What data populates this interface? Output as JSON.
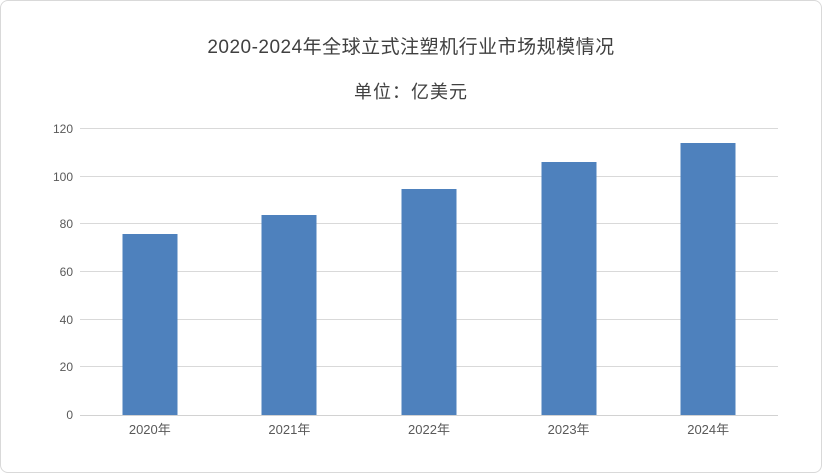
{
  "chart_data": {
    "type": "bar",
    "title": "2020-2024年全球立式注塑机行业市场规模情况",
    "subtitle": "单位：亿美元",
    "categories": [
      "2020年",
      "2021年",
      "2022年",
      "2023年",
      "2024年"
    ],
    "values": [
      76,
      84,
      95,
      106,
      114
    ],
    "xlabel": "",
    "ylabel": "",
    "ylim": [
      0,
      120
    ],
    "yticks": [
      0,
      20,
      40,
      60,
      80,
      100,
      120
    ],
    "grid": "horizontal",
    "legend": "none"
  },
  "colors": {
    "bar": "#4e81bd",
    "gridline": "#d9d9d9",
    "axis_line": "#d2d2d2",
    "title_text": "#404040",
    "axis_text": "#595959",
    "frame_border": "#d9d9d9",
    "background": "#ffffff"
  }
}
